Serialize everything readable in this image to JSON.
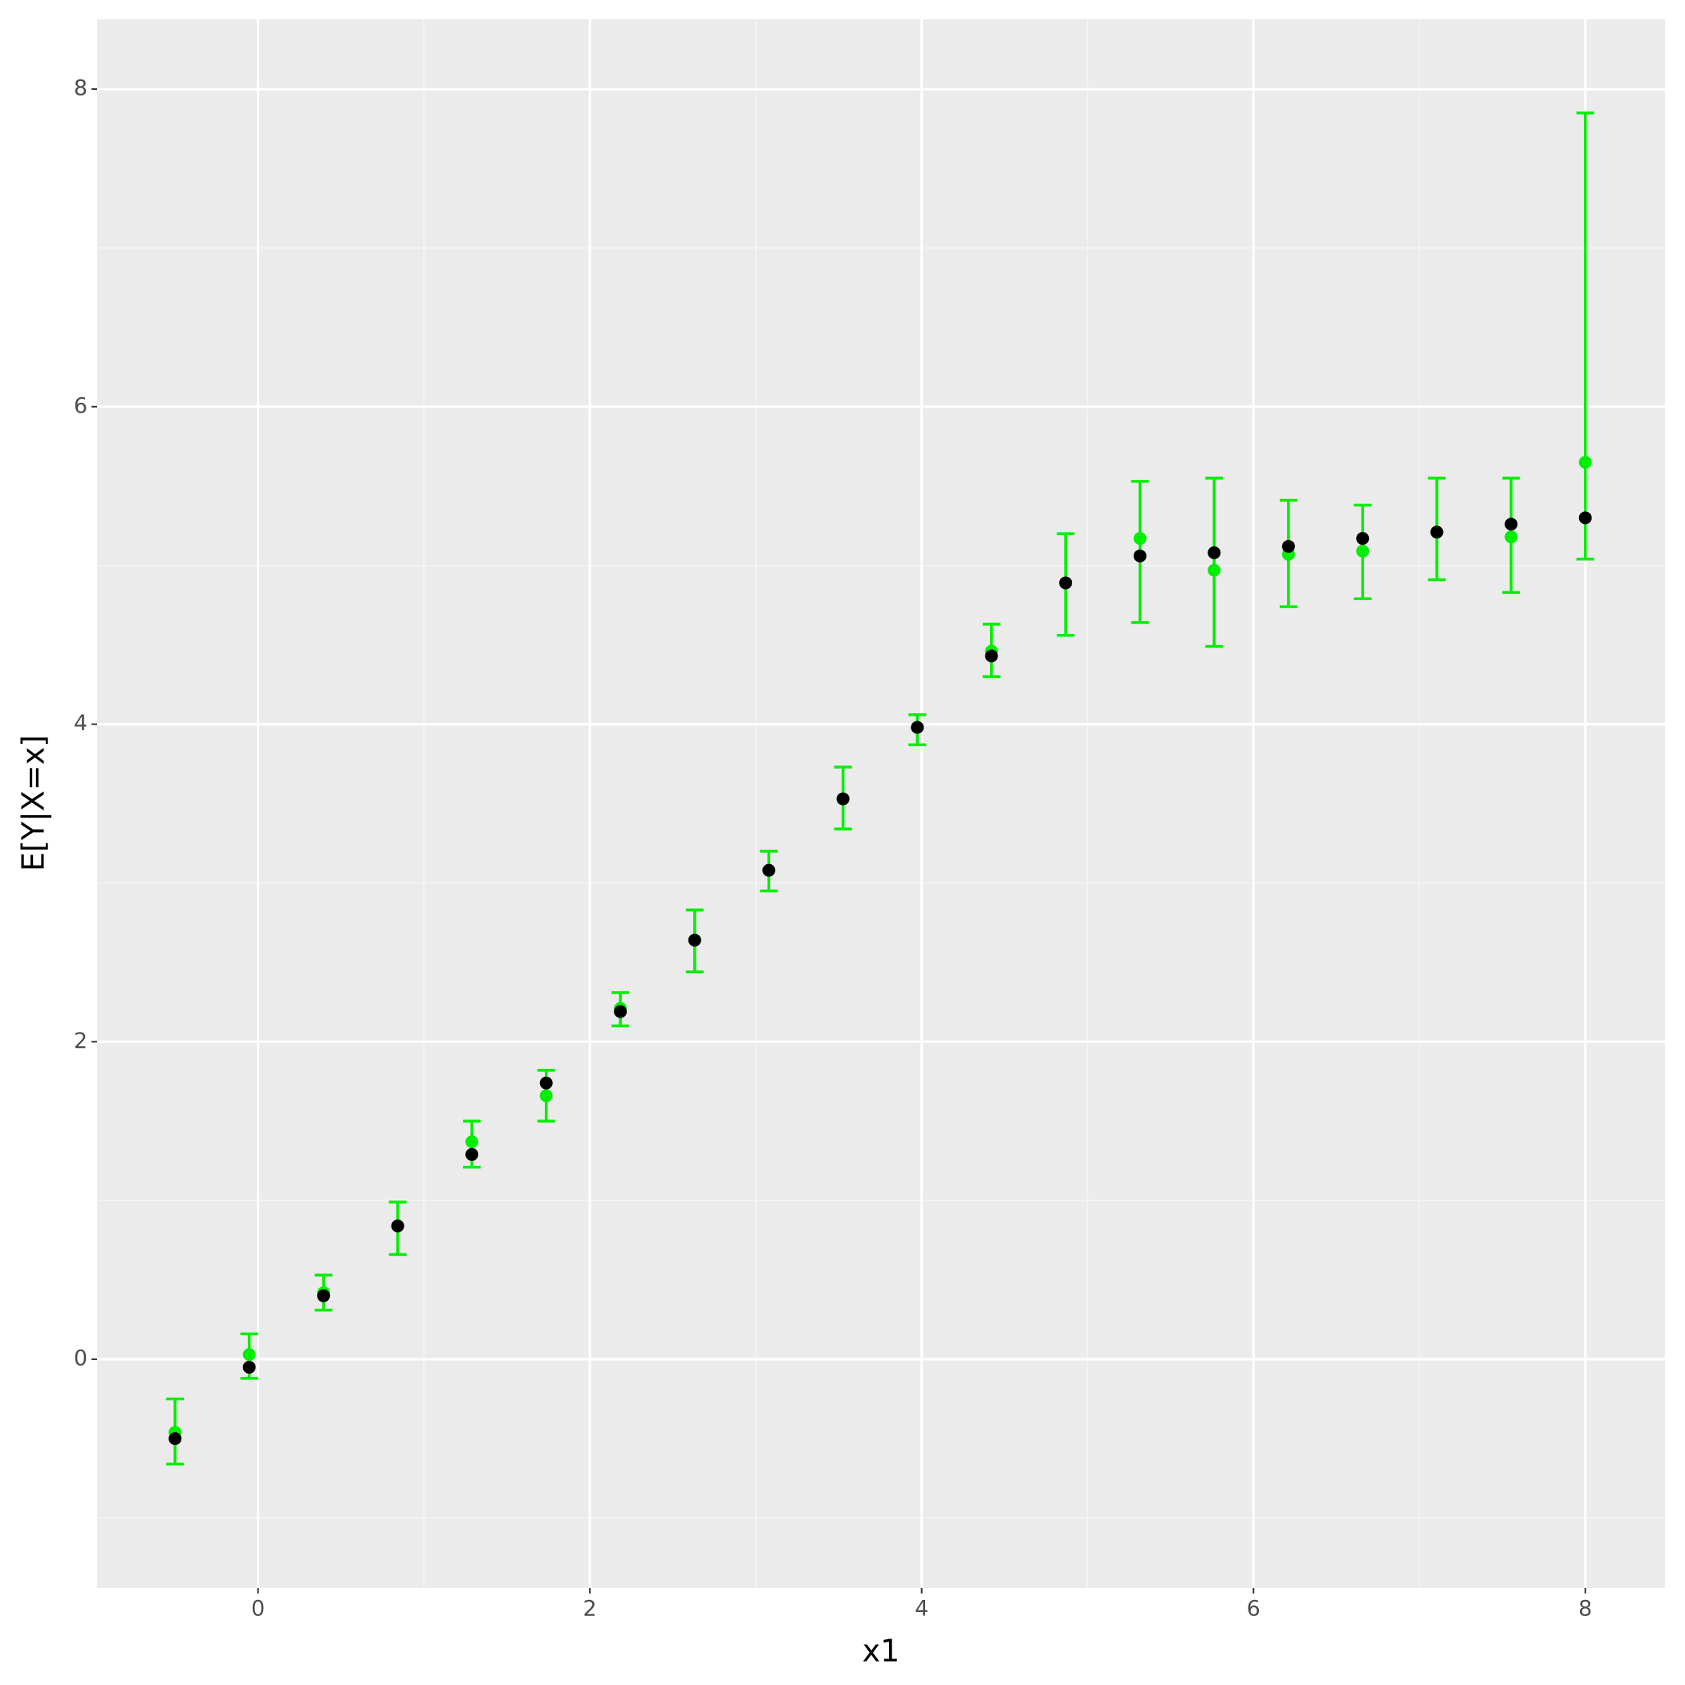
{
  "chart_data": {
    "type": "scatter",
    "x_label": "x1",
    "y_label": "E[Y|X=x]",
    "x": [
      -0.5,
      -0.053,
      0.395,
      0.842,
      1.289,
      1.737,
      2.184,
      2.632,
      3.079,
      3.526,
      3.974,
      4.421,
      4.868,
      5.316,
      5.763,
      6.211,
      6.658,
      7.105,
      7.553,
      8.0
    ],
    "series": [
      {
        "color": "#000000",
        "values": [
          -0.5,
          -0.05,
          0.4,
          0.84,
          1.29,
          1.74,
          2.19,
          2.64,
          3.08,
          3.53,
          3.98,
          4.43,
          4.89,
          5.06,
          5.08,
          5.12,
          5.17,
          5.21,
          5.26,
          5.3
        ]
      },
      {
        "color": "#00ee00",
        "values": [
          -0.46,
          0.03,
          0.42,
          0.84,
          1.37,
          1.66,
          2.21,
          2.64,
          3.08,
          3.53,
          3.98,
          4.46,
          4.89,
          5.17,
          4.97,
          5.07,
          5.09,
          5.21,
          5.18,
          5.65
        ],
        "lower": [
          -0.66,
          -0.12,
          0.31,
          0.66,
          1.21,
          1.5,
          2.1,
          2.44,
          2.95,
          3.34,
          3.87,
          4.3,
          4.56,
          4.64,
          4.49,
          4.74,
          4.79,
          4.91,
          4.83,
          5.04
        ],
        "upper": [
          -0.25,
          0.16,
          0.53,
          0.99,
          1.5,
          1.82,
          2.31,
          2.83,
          3.2,
          3.73,
          4.06,
          4.63,
          5.2,
          5.53,
          5.55,
          5.41,
          5.38,
          5.55,
          5.55,
          7.85
        ]
      }
    ],
    "xlim": [
      -0.97,
      8.48
    ],
    "ylim": [
      -1.44,
      8.44
    ],
    "xticks": [
      0,
      2,
      4,
      6,
      8
    ],
    "yticks": [
      0,
      2,
      4,
      6,
      8
    ],
    "xminor": [
      1,
      3,
      5,
      7
    ],
    "yminor": [
      -1,
      1,
      3,
      5,
      7
    ],
    "grid": true
  }
}
